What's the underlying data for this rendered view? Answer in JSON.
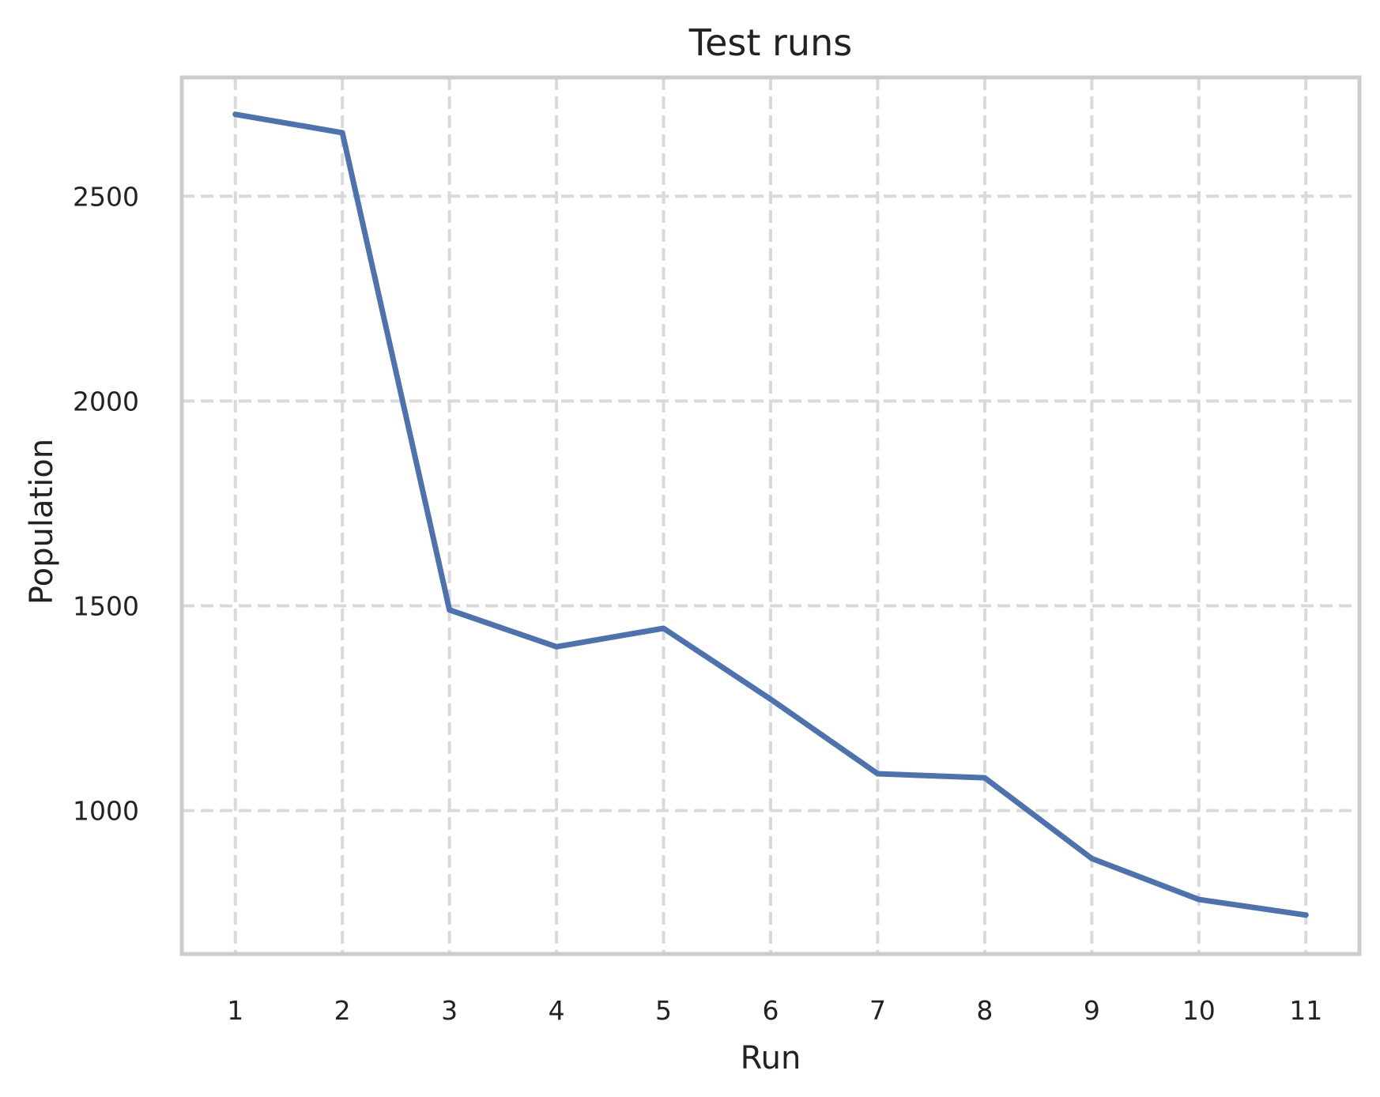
{
  "chart_data": {
    "type": "line",
    "title": "Test runs",
    "xlabel": "Run",
    "ylabel": "Population",
    "x": [
      1,
      2,
      3,
      4,
      5,
      6,
      7,
      8,
      9,
      10,
      11
    ],
    "series": [
      {
        "values": [
          2700,
          2655,
          1490,
          1400,
          1445,
          1272,
          1090,
          1080,
          883,
          783,
          745
        ],
        "color": "#4c72b0"
      }
    ],
    "xlim": [
      0.5,
      11.5
    ],
    "ylim": [
      650,
      2790
    ],
    "xticks": [
      1,
      2,
      3,
      4,
      5,
      6,
      7,
      8,
      9,
      10,
      11
    ],
    "yticks": [
      1000,
      1500,
      2000,
      2500
    ],
    "grid": true,
    "grid_style": "dashed",
    "legend": "none"
  },
  "colors": {
    "line": "#4c72b0",
    "grid": "#d9d9d9",
    "frame": "#cccccc",
    "text": "#222222"
  }
}
